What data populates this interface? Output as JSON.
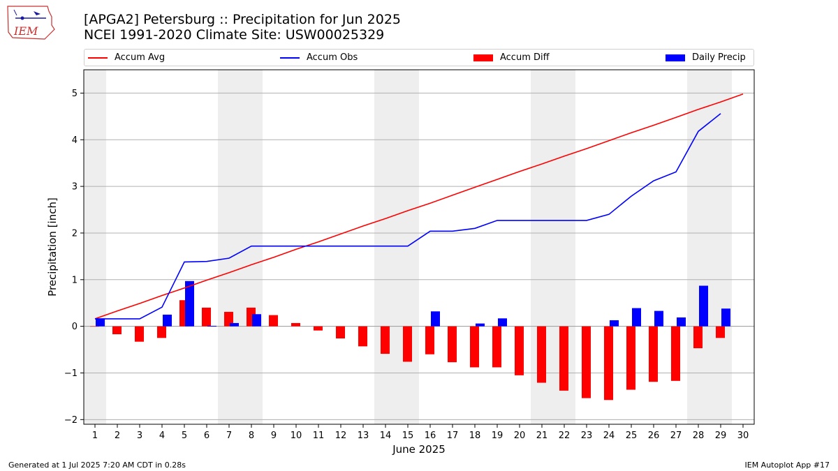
{
  "header": {
    "title_line1": "[APGA2] Petersburg :: Precipitation for Jun 2025",
    "title_line2": "NCEI 1991-2020 Climate Site: USW00025329",
    "logo_text": "IEM"
  },
  "footer": {
    "left": "Generated at 1 Jul 2025 7:20 AM CDT in 0.28s",
    "right": "IEM Autoplot App #17"
  },
  "colors": {
    "avg": "#ff0000",
    "obs": "#0000ff",
    "diff": "#ff0000",
    "daily": "#0000ff",
    "weekend": "#eeeeee",
    "grid": "#b0b0b0"
  },
  "chart_data": {
    "type": "bar",
    "xlabel": "June 2025",
    "ylabel": "Precipitation [inch]",
    "ylim": [
      -2.1,
      5.5
    ],
    "yticks": [
      -2,
      -1,
      0,
      1,
      2,
      3,
      4,
      5
    ],
    "ytick_labels": [
      "−2",
      "−1",
      "0",
      "1",
      "2",
      "3",
      "4",
      "5"
    ],
    "xlim": [
      0.5,
      30.5
    ],
    "days": [
      1,
      2,
      3,
      4,
      5,
      6,
      7,
      8,
      9,
      10,
      11,
      12,
      13,
      14,
      15,
      16,
      17,
      18,
      19,
      20,
      21,
      22,
      23,
      24,
      25,
      26,
      27,
      28,
      29,
      30
    ],
    "grid": true,
    "legend_position": "top",
    "weekend_bands": [
      [
        0.5,
        1.5
      ],
      [
        6.5,
        8.5
      ],
      [
        13.5,
        15.5
      ],
      [
        20.5,
        22.5
      ],
      [
        27.5,
        29.5
      ]
    ],
    "series": [
      {
        "name": "Accum Avg",
        "kind": "line",
        "x": [
          1,
          2,
          3,
          4,
          5,
          6,
          7,
          8,
          9,
          10,
          11,
          12,
          13,
          14,
          15,
          16,
          17,
          18,
          19,
          20,
          21,
          22,
          23,
          24,
          25,
          26,
          27,
          28,
          29,
          30
        ],
        "values": [
          0.16,
          0.33,
          0.49,
          0.66,
          0.82,
          0.99,
          1.15,
          1.32,
          1.48,
          1.65,
          1.81,
          1.98,
          2.15,
          2.31,
          2.48,
          2.64,
          2.81,
          2.98,
          3.15,
          3.32,
          3.48,
          3.65,
          3.81,
          3.98,
          4.15,
          4.31,
          4.48,
          4.65,
          4.81,
          4.98
        ]
      },
      {
        "name": "Accum Obs",
        "kind": "line",
        "x": [
          1,
          2,
          3,
          4,
          5,
          6,
          7,
          8,
          9,
          10,
          11,
          12,
          13,
          14,
          15,
          16,
          17,
          18,
          19,
          20,
          21,
          22,
          23,
          24,
          25,
          26,
          27,
          28,
          29
        ],
        "values": [
          0.16,
          0.16,
          0.16,
          0.41,
          1.38,
          1.39,
          1.46,
          1.72,
          1.72,
          1.72,
          1.72,
          1.72,
          1.72,
          1.72,
          1.72,
          2.04,
          2.04,
          2.1,
          2.27,
          2.27,
          2.27,
          2.27,
          2.27,
          2.4,
          2.79,
          3.12,
          3.31,
          4.18,
          4.56
        ]
      },
      {
        "name": "Accum Diff",
        "kind": "bar",
        "x": [
          1,
          2,
          3,
          4,
          5,
          6,
          7,
          8,
          9,
          10,
          11,
          12,
          13,
          14,
          15,
          16,
          17,
          18,
          19,
          20,
          21,
          22,
          23,
          24,
          25,
          26,
          27,
          28,
          29
        ],
        "values": [
          0.0,
          -0.17,
          -0.33,
          -0.25,
          0.56,
          0.4,
          0.31,
          0.4,
          0.24,
          0.07,
          -0.09,
          -0.26,
          -0.43,
          -0.59,
          -0.76,
          -0.6,
          -0.77,
          -0.88,
          -0.88,
          -1.05,
          -1.21,
          -1.38,
          -1.54,
          -1.58,
          -1.36,
          -1.19,
          -1.17,
          -0.47,
          -0.25
        ]
      },
      {
        "name": "Daily Precip",
        "kind": "bar",
        "x": [
          1,
          2,
          3,
          4,
          5,
          6,
          7,
          8,
          9,
          10,
          11,
          12,
          13,
          14,
          15,
          16,
          17,
          18,
          19,
          20,
          21,
          22,
          23,
          24,
          25,
          26,
          27,
          28,
          29
        ],
        "values": [
          0.16,
          0,
          0,
          0.25,
          0.97,
          0.01,
          0.07,
          0.26,
          0,
          0,
          0,
          0,
          0,
          0,
          0,
          0.32,
          0,
          0.06,
          0.17,
          0,
          0,
          0,
          0,
          0.13,
          0.39,
          0.33,
          0.19,
          0.87,
          0.38
        ]
      }
    ]
  }
}
